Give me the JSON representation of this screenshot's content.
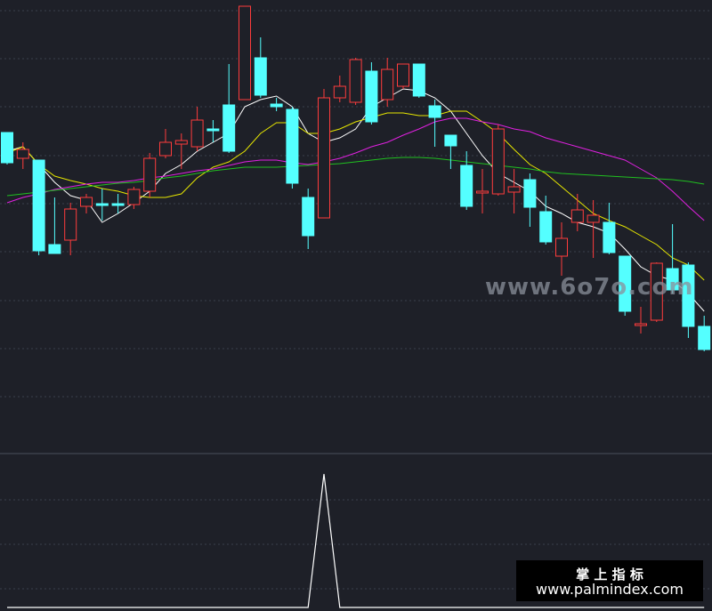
{
  "chart_data": {
    "type": "candlestick",
    "ylim": [
      0,
      500
    ],
    "up_color": "#ff3c3c",
    "down_color": "#54ffff",
    "open": [
      351,
      322,
      320,
      225,
      230,
      268,
      271,
      271,
      270,
      285,
      325,
      338,
      335,
      355,
      382,
      388,
      435,
      383,
      377,
      278,
      255,
      390,
      385,
      420,
      388,
      403,
      428,
      381,
      348,
      314,
      283,
      282,
      284,
      298,
      262,
      212,
      250,
      250,
      250,
      212,
      134,
      140,
      198,
      202,
      133
    ],
    "close": [
      317,
      332,
      218,
      215,
      265,
      278,
      269,
      270,
      287,
      322,
      340,
      342,
      365,
      353,
      330,
      493,
      393,
      380,
      294,
      235,
      390,
      403,
      433,
      363,
      422,
      428,
      392,
      368,
      336,
      268,
      285,
      355,
      290,
      267,
      228,
      232,
      264,
      258,
      216,
      150,
      136,
      204,
      174,
      133,
      107
    ],
    "high": [
      351,
      340,
      320,
      278,
      272,
      282,
      288,
      282,
      290,
      328,
      355,
      350,
      380,
      365,
      428,
      493,
      458,
      390,
      380,
      288,
      400,
      415,
      435,
      430,
      435,
      428,
      428,
      388,
      348,
      330,
      310,
      360,
      310,
      305,
      280,
      250,
      282,
      275,
      272,
      212,
      155,
      205,
      248,
      205,
      145
    ],
    "low": [
      315,
      310,
      213,
      215,
      213,
      260,
      252,
      260,
      265,
      278,
      322,
      310,
      330,
      340,
      328,
      388,
      390,
      375,
      288,
      220,
      255,
      385,
      382,
      360,
      380,
      400,
      390,
      335,
      310,
      264,
      260,
      280,
      260,
      245,
      225,
      190,
      240,
      210,
      214,
      145,
      125,
      138,
      170,
      120,
      105
    ],
    "lines": [
      {
        "color": "#ffffff",
        "values": [
          330,
          335,
          315,
          295,
          280,
          275,
          250,
          260,
          272,
          285,
          305,
          315,
          330,
          340,
          350,
          380,
          388,
          392,
          380,
          350,
          340,
          345,
          355,
          380,
          390,
          400,
          398,
          390,
          375,
          350,
          325,
          305,
          295,
          285,
          268,
          260,
          250,
          245,
          238,
          220,
          200,
          190,
          185,
          170,
          150
        ]
      },
      {
        "color": "#e6e600",
        "values": [
          328,
          335,
          315,
          302,
          297,
          293,
          288,
          285,
          280,
          278,
          278,
          282,
          300,
          312,
          318,
          330,
          350,
          362,
          362,
          350,
          350,
          355,
          363,
          368,
          373,
          373,
          370,
          370,
          375,
          375,
          363,
          350,
          332,
          315,
          305,
          290,
          275,
          260,
          252,
          245,
          235,
          225,
          210,
          202,
          185
        ]
      },
      {
        "color": "#e020e0",
        "values": [
          272,
          278,
          282,
          287,
          290,
          293,
          295,
          295,
          297,
          300,
          302,
          305,
          308,
          310,
          314,
          318,
          320,
          320,
          317,
          315,
          318,
          322,
          328,
          335,
          340,
          348,
          355,
          363,
          367,
          367,
          363,
          360,
          355,
          352,
          345,
          340,
          335,
          330,
          325,
          320,
          310,
          300,
          285,
          268,
          252
        ]
      },
      {
        "color": "#20c020",
        "values": [
          280,
          282,
          284,
          286,
          288,
          290,
          292,
          294,
          295,
          297,
          300,
          302,
          305,
          308,
          310,
          312,
          312,
          312,
          313,
          314,
          315,
          316,
          318,
          320,
          322,
          323,
          323,
          322,
          320,
          318,
          316,
          314,
          312,
          310,
          307,
          305,
          304,
          303,
          302,
          301,
          300,
          299,
          298,
          296,
          293
        ]
      }
    ],
    "indicator": {
      "color": "#ffffff",
      "ylim": [
        0,
        1
      ],
      "values": [
        0,
        0,
        0,
        0,
        0,
        0,
        0,
        0,
        0,
        0,
        0,
        0,
        0,
        0,
        0,
        0,
        0,
        0,
        0,
        0,
        1,
        0,
        0,
        0,
        0,
        0,
        0,
        0,
        0,
        0,
        0,
        0,
        0,
        0,
        0,
        0,
        0,
        0,
        0,
        0,
        0,
        0,
        0,
        0,
        0
      ]
    },
    "watermark": "www.6o7o.com",
    "brand": "掌 上 指 标",
    "site": "www.palmindex.com"
  }
}
